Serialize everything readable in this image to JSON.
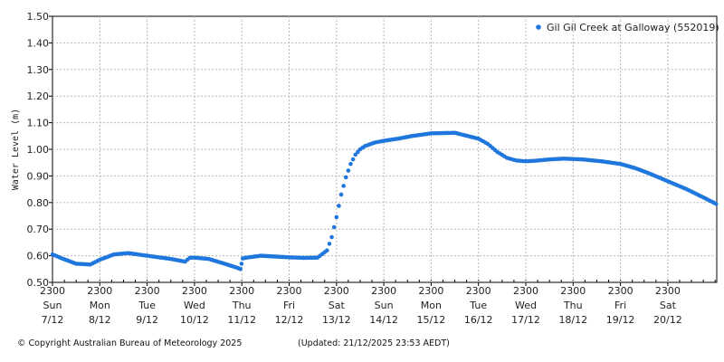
{
  "chart_data": {
    "type": "scatter",
    "ylabel": "Water Level (m)",
    "ylim": [
      0.5,
      1.5
    ],
    "y_ticks": [
      "0.50",
      "0.60",
      "0.70",
      "0.80",
      "0.90",
      "1.00",
      "1.10",
      "1.20",
      "1.30",
      "1.40",
      "1.50"
    ],
    "x_ticks": [
      {
        "time": "2300",
        "day": "Sun",
        "date": "7/12"
      },
      {
        "time": "2300",
        "day": "Mon",
        "date": "8/12"
      },
      {
        "time": "2300",
        "day": "Tue",
        "date": "9/12"
      },
      {
        "time": "2300",
        "day": "Wed",
        "date": "10/12"
      },
      {
        "time": "2300",
        "day": "Thu",
        "date": "11/12"
      },
      {
        "time": "2300",
        "day": "Fri",
        "date": "12/12"
      },
      {
        "time": "2300",
        "day": "Sat",
        "date": "13/12"
      },
      {
        "time": "2300",
        "day": "Sun",
        "date": "14/12"
      },
      {
        "time": "2300",
        "day": "Mon",
        "date": "15/12"
      },
      {
        "time": "2300",
        "day": "Tue",
        "date": "16/12"
      },
      {
        "time": "2300",
        "day": "Wed",
        "date": "17/12"
      },
      {
        "time": "2300",
        "day": "Thu",
        "date": "18/12"
      },
      {
        "time": "2300",
        "day": "Fri",
        "date": "19/12"
      },
      {
        "time": "2300",
        "day": "Sat",
        "date": "20/12"
      }
    ],
    "grid": true,
    "legend_position": "top-right",
    "series": [
      {
        "name": "Gil Gil Creek at Galloway (552019)",
        "color": "#1f77dd",
        "x_start": "7/12 2300",
        "x_end": "21/12 2353",
        "x": [
          0,
          0.2,
          0.5,
          0.8,
          1.0,
          1.3,
          1.6,
          2.0,
          2.5,
          2.8,
          2.9,
          3.0,
          3.3,
          3.6,
          3.9,
          3.97,
          4.02,
          4.1,
          4.4,
          4.7,
          5.0,
          5.3,
          5.6,
          5.8,
          5.9,
          6.0,
          6.1,
          6.2,
          6.3,
          6.4,
          6.5,
          6.6,
          6.8,
          7.0,
          7.3,
          7.6,
          8.0,
          8.5,
          9.0,
          9.2,
          9.4,
          9.6,
          9.8,
          10.0,
          10.2,
          10.5,
          10.8,
          11.2,
          11.6,
          12.0,
          12.3,
          12.6,
          13.0,
          13.4,
          13.8,
          14.02
        ],
        "y": [
          0.605,
          0.59,
          0.57,
          0.567,
          0.585,
          0.605,
          0.61,
          0.6,
          0.588,
          0.578,
          0.592,
          0.593,
          0.588,
          0.572,
          0.555,
          0.55,
          0.59,
          0.593,
          0.6,
          0.597,
          0.594,
          0.592,
          0.593,
          0.62,
          0.67,
          0.745,
          0.83,
          0.895,
          0.945,
          0.98,
          1.0,
          1.012,
          1.025,
          1.032,
          1.04,
          1.05,
          1.06,
          1.062,
          1.04,
          1.02,
          0.99,
          0.968,
          0.958,
          0.955,
          0.957,
          0.962,
          0.965,
          0.962,
          0.955,
          0.945,
          0.93,
          0.91,
          0.88,
          0.85,
          0.815,
          0.795
        ]
      }
    ]
  },
  "footer": {
    "copyright": "© Copyright Australian Bureau of Meteorology 2025",
    "updated": "(Updated: 21/12/2025 23:53 AEDT)"
  }
}
